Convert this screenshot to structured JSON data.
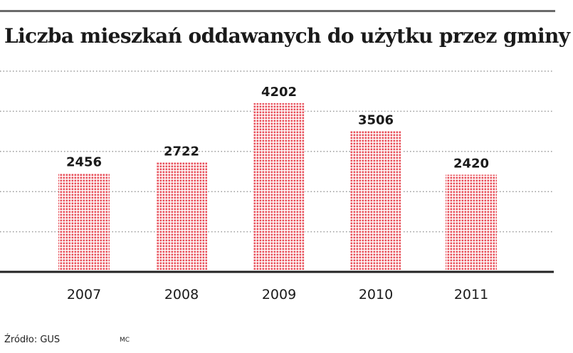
{
  "title": "Liczba mieszkań oddawanych do użytku przez gminy",
  "source": "Źródło: GUS",
  "author": "MC",
  "colors": {
    "bar_dot": "#e8505b",
    "baseline": "#222222",
    "grid_dot": "#9a9a9a",
    "text": "#1a1a1a"
  },
  "chart_data": {
    "type": "bar",
    "categories": [
      "2007",
      "2008",
      "2009",
      "2010",
      "2011"
    ],
    "values": [
      2456,
      2722,
      4202,
      3506,
      2420
    ],
    "title": "Liczba mieszkań oddawanych do użytku przez gminy",
    "xlabel": "",
    "ylabel": "",
    "ylim": [
      0,
      5000
    ],
    "grid": true,
    "data_labels": true
  }
}
